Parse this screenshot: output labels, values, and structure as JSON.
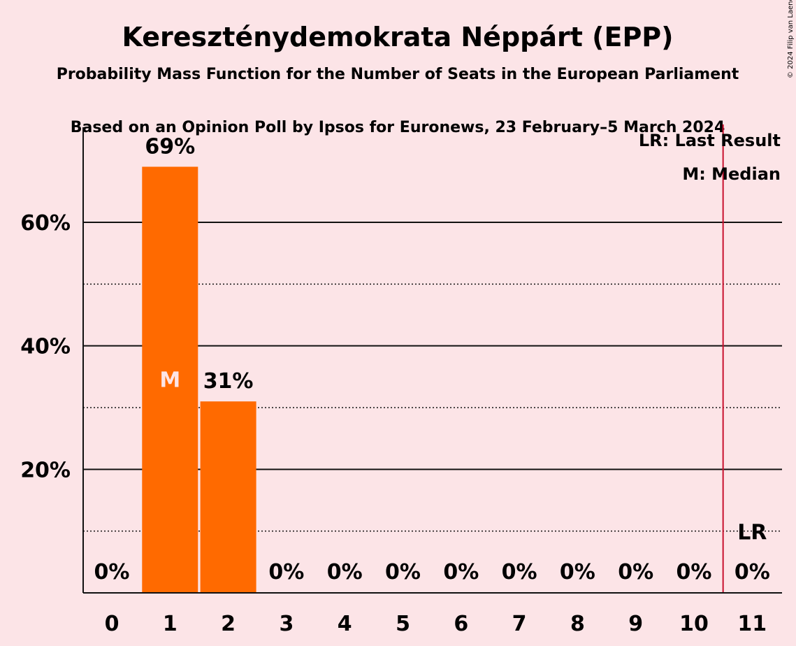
{
  "chart_data": {
    "type": "bar",
    "title": "Kereszténydemokrata Néppárt (EPP)",
    "subtitle": "Probability Mass Function for the Number of Seats in the European Parliament",
    "subtitle2": "Based on an Opinion Poll by Ipsos for Euronews, 23 February–5 March 2024",
    "copyright": "© 2024 Filip van Laenen",
    "categories": [
      "0",
      "1",
      "2",
      "3",
      "4",
      "5",
      "6",
      "7",
      "8",
      "9",
      "10",
      "11"
    ],
    "values": [
      0,
      69,
      31,
      0,
      0,
      0,
      0,
      0,
      0,
      0,
      0,
      0
    ],
    "value_labels": [
      "0%",
      "69%",
      "31%",
      "0%",
      "0%",
      "0%",
      "0%",
      "0%",
      "0%",
      "0%",
      "0%",
      "0%"
    ],
    "ylim": [
      0,
      75
    ],
    "yticks_major": [
      20,
      40,
      60
    ],
    "ytick_labels": [
      "20%",
      "40%",
      "60%"
    ],
    "yticks_minor": [
      10,
      30,
      50
    ],
    "median_seat": 1,
    "median_label": "M",
    "last_result_seat": 11,
    "last_result_label": "LR",
    "legend": [
      "LR: Last Result",
      "M: Median"
    ],
    "legend_position": "top-right",
    "bar_color": "#ff6a00",
    "lr_line_color": "#c8102e",
    "median_label_color": "#fce4e7"
  }
}
